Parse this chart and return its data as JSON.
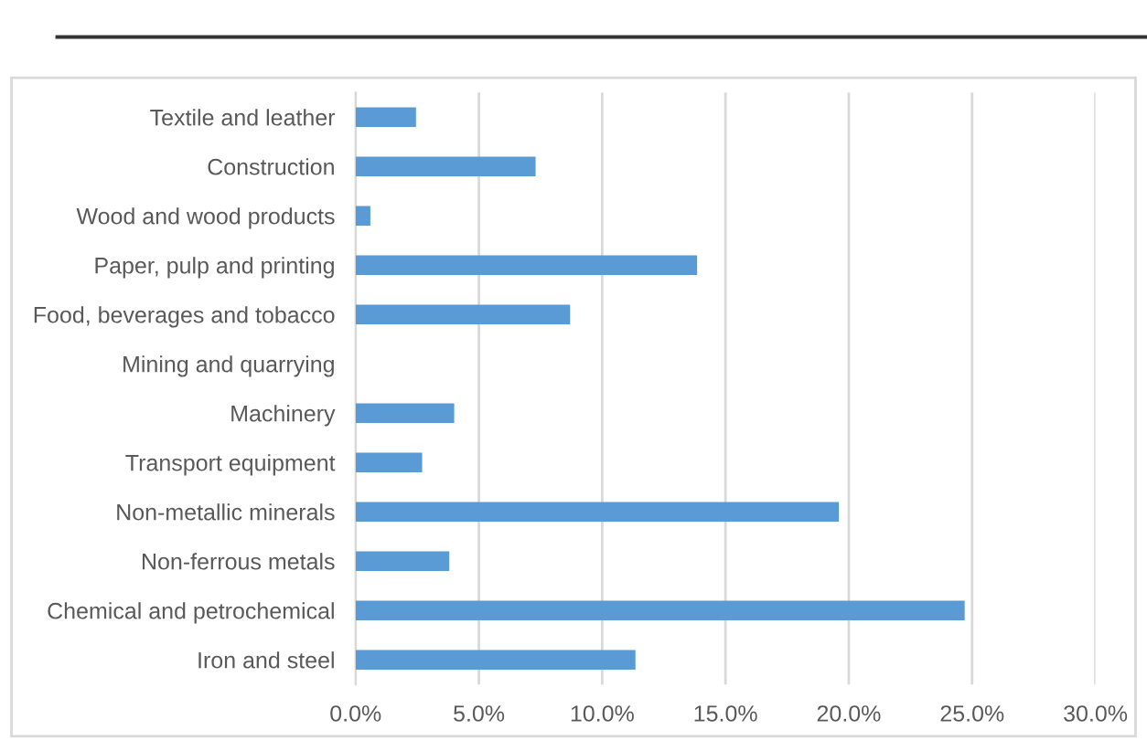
{
  "chart_data": {
    "type": "bar",
    "orientation": "horizontal",
    "categories": [
      "Textile and leather",
      "Construction",
      "Wood and wood products",
      "Paper, pulp and printing",
      "Food, beverages and tobacco",
      "Mining and quarrying",
      "Machinery",
      "Transport equipment",
      "Non-metallic minerals",
      "Non-ferrous metals",
      "Chemical and petrochemical",
      "Iron and steel"
    ],
    "values": [
      2.45,
      7.3,
      0.6,
      13.85,
      8.7,
      0,
      4.0,
      2.7,
      19.6,
      3.8,
      24.7,
      11.35
    ],
    "color": "#5b9bd5",
    "xlim": [
      0,
      30
    ],
    "xticks": [
      {
        "value": 0,
        "label": "0.0%"
      },
      {
        "value": 5,
        "label": "5.0%"
      },
      {
        "value": 10,
        "label": "10.0%"
      },
      {
        "value": 15,
        "label": "15.0%"
      },
      {
        "value": 20,
        "label": "20.0%"
      },
      {
        "value": 25,
        "label": "25.0%"
      },
      {
        "value": 30,
        "label": "30.0%"
      }
    ],
    "grid": "x",
    "legend": false
  }
}
